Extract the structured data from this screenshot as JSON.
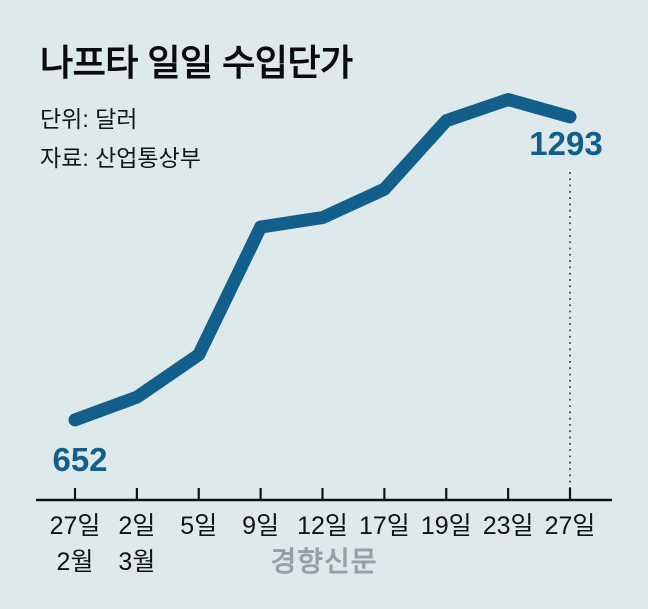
{
  "header": {
    "title": "나프타 일일 수입단가",
    "unit": "단위: 달러",
    "source": "자료: 산업통상부"
  },
  "chart_data": {
    "type": "line",
    "title": "나프타 일일 수입단가",
    "unit_label": "단위: 달러",
    "source_label": "자료: 산업통상부",
    "categories": [
      "27일",
      "2일",
      "5일",
      "9일",
      "12일",
      "17일",
      "19일",
      "23일",
      "27일"
    ],
    "values": [
      652,
      700,
      790,
      1060,
      1080,
      1140,
      1285,
      1330,
      1293
    ],
    "month_labels": [
      {
        "index": 0,
        "label": "2월"
      },
      {
        "index": 1,
        "label": "3월"
      }
    ],
    "start_label": "652",
    "end_label": "1293",
    "line_color": "#135f8c",
    "label_color": "#135f8c",
    "axis_color": "#121212",
    "ylim": [
      620,
      1350
    ],
    "grid": false,
    "legend": false
  },
  "watermark": "경향신문"
}
